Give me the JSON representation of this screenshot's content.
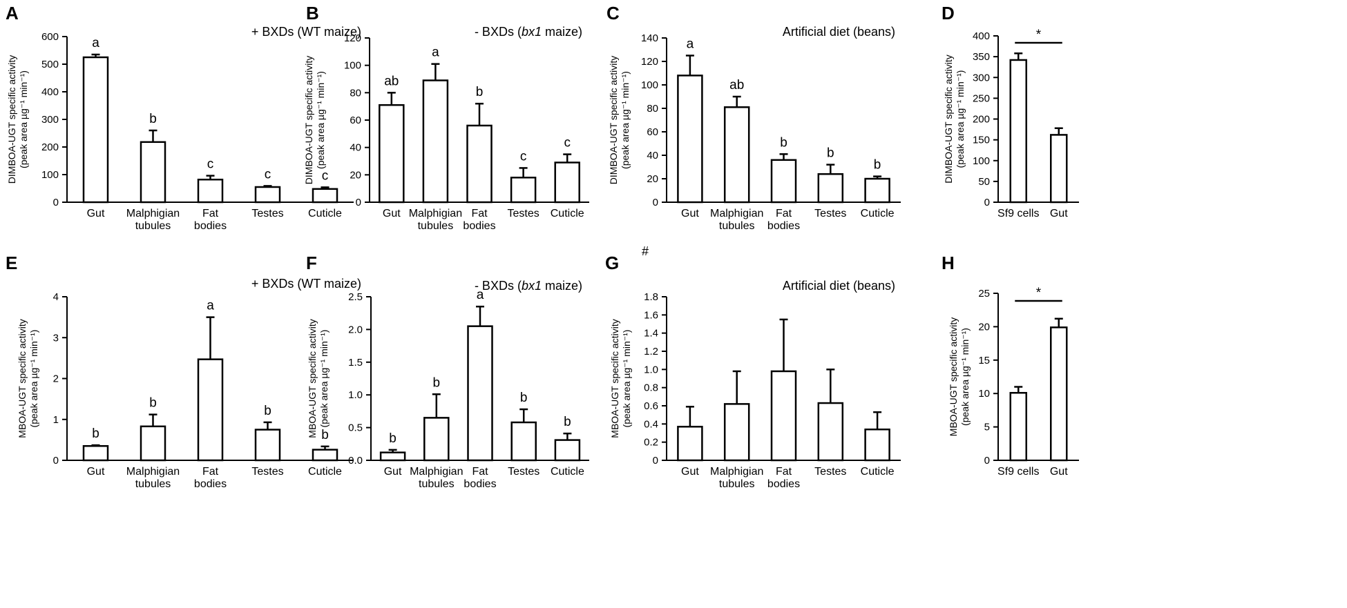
{
  "chart_data": [
    {
      "panel": "A",
      "type": "bar",
      "condition": "+ BXDs (WT maize)",
      "ylabel": "DIMBOA-UGT specific activity",
      "ylabel2": "(peak area µg⁻¹ min⁻¹)",
      "ylim": [
        0,
        600
      ],
      "yticks": [
        "0",
        "100",
        "200",
        "300",
        "400",
        "500",
        "600"
      ],
      "categories": [
        [
          "Gut"
        ],
        [
          "Malphigian",
          "tubules"
        ],
        [
          "Fat",
          "bodies"
        ],
        [
          "Testes"
        ],
        [
          "Cuticle"
        ]
      ],
      "values": [
        525,
        218,
        82,
        55,
        48
      ],
      "errors": [
        10,
        42,
        14,
        4,
        6
      ],
      "significance": [
        "a",
        "b",
        "c",
        "c",
        "c"
      ]
    },
    {
      "panel": "B",
      "type": "bar",
      "condition": "- BXDs (bx1 maize)",
      "ylabel": "DIMBOA-UGT specific activity",
      "ylabel2": "(peak area µg⁻¹ min⁻¹)",
      "ylim": [
        0,
        120
      ],
      "yticks": [
        "0",
        "20",
        "40",
        "60",
        "80",
        "100",
        "120"
      ],
      "categories": [
        [
          "Gut"
        ],
        [
          "Malphigian",
          "tubules"
        ],
        [
          "Fat",
          "bodies"
        ],
        [
          "Testes"
        ],
        [
          "Cuticle"
        ]
      ],
      "values": [
        71,
        89,
        56,
        18,
        29
      ],
      "errors": [
        9,
        12,
        16,
        7,
        6
      ],
      "significance": [
        "ab",
        "a",
        "b",
        "c",
        "c"
      ]
    },
    {
      "panel": "C",
      "type": "bar",
      "condition": "Artificial diet (beans)",
      "ylabel": "DIMBOA-UGT specific activity",
      "ylabel2": "(peak area µg⁻¹ min⁻¹)",
      "ylim": [
        0,
        140
      ],
      "yticks": [
        "0",
        "20",
        "40",
        "60",
        "80",
        "100",
        "120",
        "140"
      ],
      "categories": [
        [
          "Gut"
        ],
        [
          "Malphigian",
          "tubules"
        ],
        [
          "Fat",
          "bodies"
        ],
        [
          "Testes"
        ],
        [
          "Cuticle"
        ]
      ],
      "values": [
        108,
        81,
        36,
        24,
        20
      ],
      "errors": [
        17,
        9,
        5,
        8,
        2
      ],
      "significance": [
        "a",
        "ab",
        "b",
        "b",
        "b"
      ]
    },
    {
      "panel": "D",
      "type": "bar",
      "condition": "",
      "ylabel": "DIMBOA-UGT specific activity",
      "ylabel2": "(peak area µg⁻¹ min⁻¹)",
      "ylim": [
        0,
        400
      ],
      "yticks": [
        "0",
        "50",
        "100",
        "150",
        "200",
        "250",
        "300",
        "350",
        "400"
      ],
      "categories": [
        [
          "Sf9 cells"
        ],
        [
          "Gut"
        ]
      ],
      "values": [
        342,
        162
      ],
      "errors": [
        16,
        16
      ],
      "significance": [],
      "bracket_label": "*"
    },
    {
      "panel": "E",
      "type": "bar",
      "condition": "+ BXDs (WT maize)",
      "ylabel": "MBOA-UGT specific activity",
      "ylabel2": "(peak area µg⁻¹ min⁻¹)",
      "ylim": [
        0,
        4
      ],
      "yticks": [
        "0",
        "1",
        "2",
        "3",
        "4"
      ],
      "categories": [
        [
          "Gut"
        ],
        [
          "Malphigian",
          "tubules"
        ],
        [
          "Fat",
          "bodies"
        ],
        [
          "Testes"
        ],
        [
          "Cuticle"
        ]
      ],
      "values": [
        0.35,
        0.83,
        2.47,
        0.75,
        0.26
      ],
      "errors": [
        0.02,
        0.29,
        1.03,
        0.18,
        0.08
      ],
      "significance": [
        "b",
        "b",
        "a",
        "b",
        "b"
      ]
    },
    {
      "panel": "F",
      "type": "bar",
      "condition": "- BXDs (bx1 maize)",
      "ylabel": "MBOA-UGT specific activity",
      "ylabel2": "(peak area µg⁻¹ min⁻¹)",
      "ylim": [
        0,
        2.5
      ],
      "yticks": [
        "0.0",
        "0.5",
        "1.0",
        "1.5",
        "2.0",
        "2.5"
      ],
      "categories": [
        [
          "Gut"
        ],
        [
          "Malphigian",
          "tubules"
        ],
        [
          "Fat",
          "bodies"
        ],
        [
          "Testes"
        ],
        [
          "Cuticle"
        ]
      ],
      "values": [
        0.12,
        0.65,
        2.05,
        0.58,
        0.31
      ],
      "errors": [
        0.04,
        0.36,
        0.3,
        0.2,
        0.1
      ],
      "significance": [
        "b",
        "b",
        "a",
        "b",
        "b"
      ]
    },
    {
      "panel": "G",
      "type": "bar",
      "condition": "Artificial diet (beans)",
      "note": "#",
      "ylabel": "MBOA-UGT specific activity",
      "ylabel2": "(peak area µg⁻¹ min⁻¹)",
      "ylim": [
        0,
        1.8
      ],
      "yticks": [
        "0",
        "0.2",
        "0.4",
        "0.6",
        "0.8",
        "1.0",
        "1.2",
        "1.4",
        "1.6",
        "1.8"
      ],
      "categories": [
        [
          "Gut"
        ],
        [
          "Malphigian",
          "tubules"
        ],
        [
          "Fat",
          "bodies"
        ],
        [
          "Testes"
        ],
        [
          "Cuticle"
        ]
      ],
      "values": [
        0.37,
        0.62,
        0.98,
        0.63,
        0.34
      ],
      "errors": [
        0.22,
        0.36,
        0.57,
        0.37,
        0.19
      ],
      "significance": []
    },
    {
      "panel": "H",
      "type": "bar",
      "condition": "",
      "ylabel": "MBOA-UGT specific activity",
      "ylabel2": "(peak area µg⁻¹ min⁻¹)",
      "ylim": [
        0,
        25
      ],
      "yticks": [
        "0",
        "5",
        "10",
        "15",
        "20",
        "25"
      ],
      "categories": [
        [
          "Sf9 cells"
        ],
        [
          "Gut"
        ]
      ],
      "values": [
        10.1,
        19.9
      ],
      "errors": [
        0.9,
        1.3
      ],
      "significance": [],
      "bracket_label": "*"
    }
  ]
}
